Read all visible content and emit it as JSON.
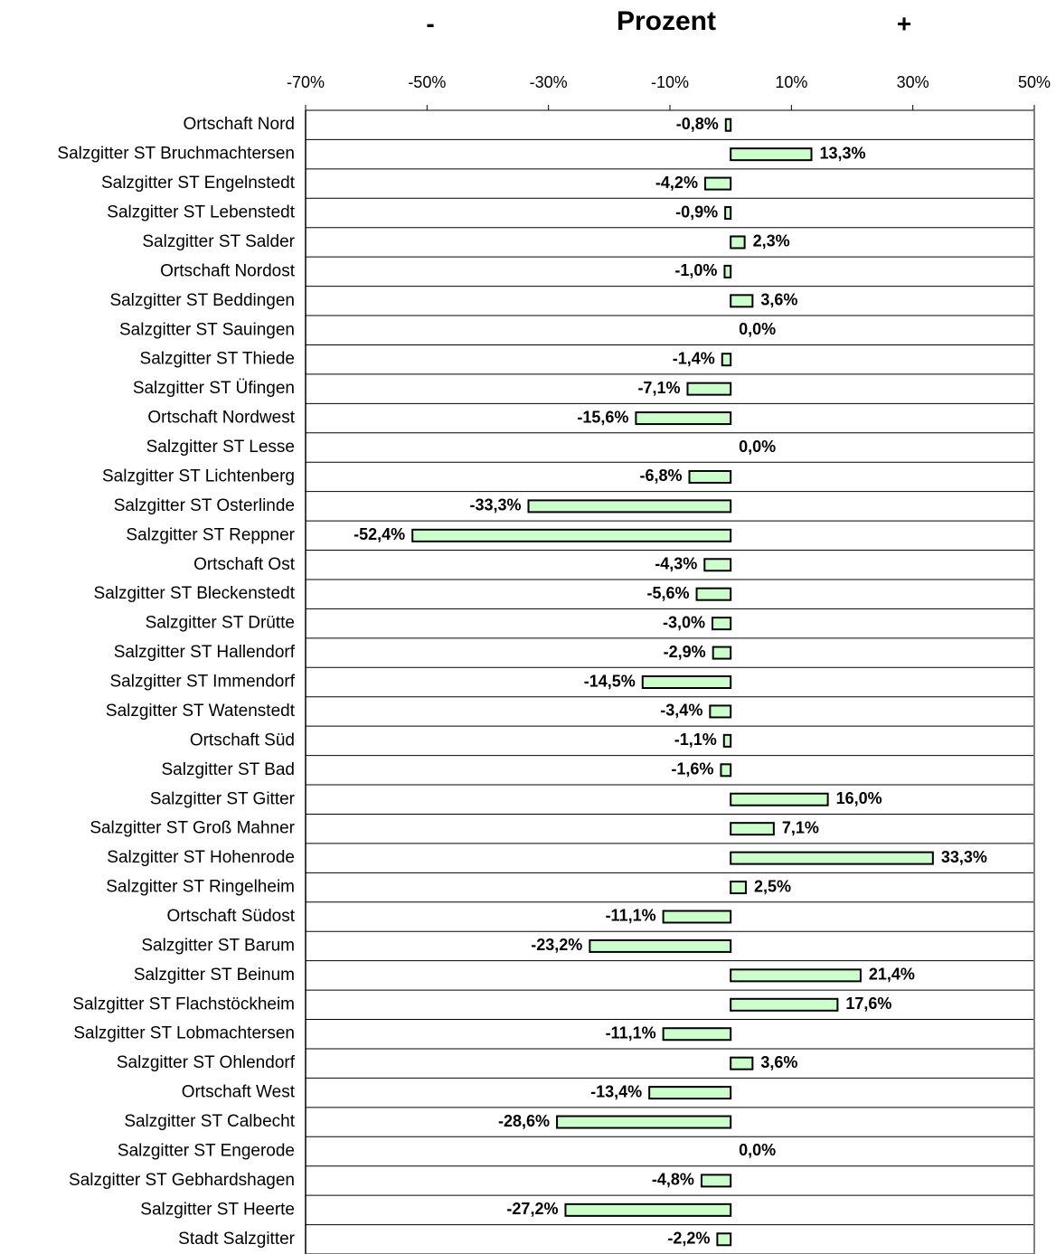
{
  "chart_data": {
    "type": "barh",
    "title": "Prozent",
    "annotations": [
      "-",
      "+"
    ],
    "categories": [
      "Ortschaft Nord",
      "Salzgitter ST Bruchmachtersen",
      "Salzgitter ST Engelnstedt",
      "Salzgitter ST Lebenstedt",
      "Salzgitter ST Salder",
      "Ortschaft Nordost",
      "Salzgitter ST Beddingen",
      "Salzgitter ST Sauingen",
      "Salzgitter ST Thiede",
      "Salzgitter ST Üfingen",
      "Ortschaft Nordwest",
      "Salzgitter ST Lesse",
      "Salzgitter ST Lichtenberg",
      "Salzgitter ST Osterlinde",
      "Salzgitter ST Reppner",
      "Ortschaft Ost",
      "Salzgitter ST Bleckenstedt",
      "Salzgitter ST Drütte",
      "Salzgitter ST Hallendorf",
      "Salzgitter ST Immendorf",
      "Salzgitter ST Watenstedt",
      "Ortschaft Süd",
      "Salzgitter ST Bad",
      "Salzgitter ST Gitter",
      "Salzgitter ST Groß Mahner",
      "Salzgitter ST Hohenrode",
      "Salzgitter ST Ringelheim",
      "Ortschaft Südost",
      "Salzgitter ST Barum",
      "Salzgitter ST Beinum",
      "Salzgitter ST Flachstöckheim",
      "Salzgitter ST Lobmachtersen",
      "Salzgitter ST Ohlendorf",
      "Ortschaft West",
      "Salzgitter ST Calbecht",
      "Salzgitter ST Engerode",
      "Salzgitter ST Gebhardshagen",
      "Salzgitter ST Heerte",
      "Stadt Salzgitter"
    ],
    "values": [
      -0.8,
      13.3,
      -4.2,
      -0.9,
      2.3,
      -1.0,
      3.6,
      0.0,
      -1.4,
      -7.1,
      -15.6,
      0.0,
      -6.8,
      -33.3,
      -52.4,
      -4.3,
      -5.6,
      -3.0,
      -2.9,
      -14.5,
      -3.4,
      -1.1,
      -1.6,
      16.0,
      7.1,
      33.3,
      2.5,
      -11.1,
      -23.2,
      21.4,
      17.6,
      -11.1,
      3.6,
      -13.4,
      -28.6,
      0.0,
      -4.8,
      -27.2,
      -2.2
    ],
    "value_labels": [
      "-0,8%",
      "13,3%",
      "-4,2%",
      "-0,9%",
      "2,3%",
      "-1,0%",
      "3,6%",
      "0,0%",
      "-1,4%",
      "-7,1%",
      "-15,6%",
      "0,0%",
      "-6,8%",
      "-33,3%",
      "-52,4%",
      "-4,3%",
      "-5,6%",
      "-3,0%",
      "-2,9%",
      "-14,5%",
      "-3,4%",
      "-1,1%",
      "-1,6%",
      "16,0%",
      "7,1%",
      "33,3%",
      "2,5%",
      "-11,1%",
      "-23,2%",
      "21,4%",
      "17,6%",
      "-11,1%",
      "3,6%",
      "-13,4%",
      "-28,6%",
      "0,0%",
      "-4,8%",
      "-27,2%",
      "-2,2%"
    ],
    "color": "#ccffcc",
    "xlim": [
      -70,
      50
    ],
    "xticks": [
      {
        "value": -70,
        "label": "-70%"
      },
      {
        "value": -50,
        "label": "-50%"
      },
      {
        "value": -30,
        "label": "-30%"
      },
      {
        "value": -10,
        "label": "-10%"
      },
      {
        "value": 10,
        "label": "10%"
      },
      {
        "value": 30,
        "label": "30%"
      },
      {
        "value": 50,
        "label": "50%"
      }
    ],
    "grid": true
  }
}
